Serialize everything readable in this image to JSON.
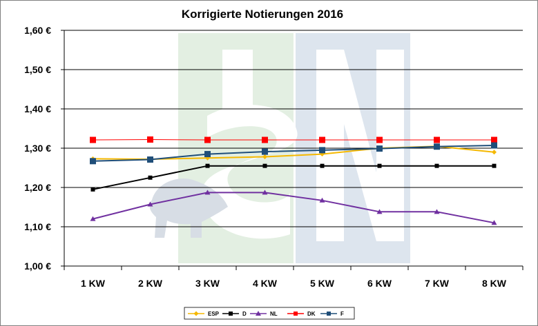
{
  "chart_data": {
    "type": "line",
    "title": "Korrigierte Notierungen 2016",
    "xlabel": "",
    "ylabel": "",
    "categories": [
      "1 KW",
      "2 KW",
      "3 KW",
      "4 KW",
      "5 KW",
      "6 KW",
      "7 KW",
      "8 KW"
    ],
    "ylim": [
      1.0,
      1.6
    ],
    "yticks": [
      1.0,
      1.1,
      1.2,
      1.3,
      1.4,
      1.5,
      1.6
    ],
    "ytick_labels": [
      "1,00 €",
      "1,10 €",
      "1,20 €",
      "1,30 €",
      "1,40 €",
      "1,50 €",
      "1,60 €"
    ],
    "grid": "horizontal",
    "legend_position": "bottom",
    "series": [
      {
        "name": "ESP",
        "color": "#f5b800",
        "marker": "diamond",
        "values": [
          1.273,
          1.272,
          1.275,
          1.278,
          1.285,
          1.3,
          1.305,
          1.29
        ]
      },
      {
        "name": "D",
        "color": "#000000",
        "marker": "square-small",
        "values": [
          1.195,
          1.225,
          1.255,
          1.255,
          1.255,
          1.255,
          1.255,
          1.255
        ]
      },
      {
        "name": "NL",
        "color": "#7030a0",
        "marker": "triangle",
        "values": [
          1.12,
          1.157,
          1.187,
          1.187,
          1.167,
          1.138,
          1.138,
          1.11
        ]
      },
      {
        "name": "DK",
        "color": "#ff0000",
        "marker": "square",
        "values": [
          1.321,
          1.322,
          1.321,
          1.321,
          1.321,
          1.321,
          1.321,
          1.321
        ]
      },
      {
        "name": "F",
        "color": "#1f4e79",
        "marker": "square",
        "values": [
          1.267,
          1.271,
          1.285,
          1.291,
          1.295,
          1.299,
          1.304,
          1.307
        ]
      }
    ]
  }
}
